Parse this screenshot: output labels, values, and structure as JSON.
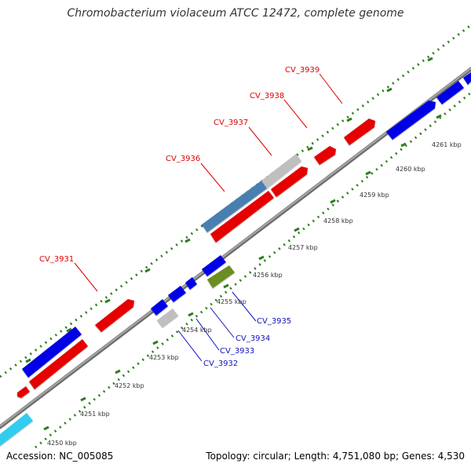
{
  "title": "Chromobacterium violaceum ATCC 12472, complete genome",
  "footer": {
    "accession": "Accession: NC_005085",
    "summary": "Topology: circular; Length: 4,751,080 bp; Genes: 4,530"
  },
  "colors": {
    "backbone": "#808080",
    "tick": "#2e7d1f",
    "forward_label": "#e00000",
    "reverse_label": "#1010c0",
    "kbp_label": "#333333"
  },
  "kbp_ticks": [
    "4250 kbp",
    "4251 kbp",
    "4252 kbp",
    "4253 kbp",
    "4254 kbp",
    "4255 kbp",
    "4256 kbp",
    "4257 kbp",
    "4258 kbp",
    "4259 kbp",
    "4260 kbp",
    "4261 kbp"
  ],
  "gene_labels": {
    "forward": [
      "CV_3931",
      "CV_3936",
      "CV_3937",
      "CV_3938",
      "CV_3939"
    ],
    "reverse": [
      "CV_3932",
      "CV_3933",
      "CV_3934",
      "CV_3935"
    ]
  },
  "feature_colors": {
    "red": "#e60000",
    "blue": "#0000e6",
    "grey": "#bfbfbf",
    "steel": "#4a7fb0",
    "olive": "#6b8e23",
    "cyan": "#33ccf0"
  }
}
